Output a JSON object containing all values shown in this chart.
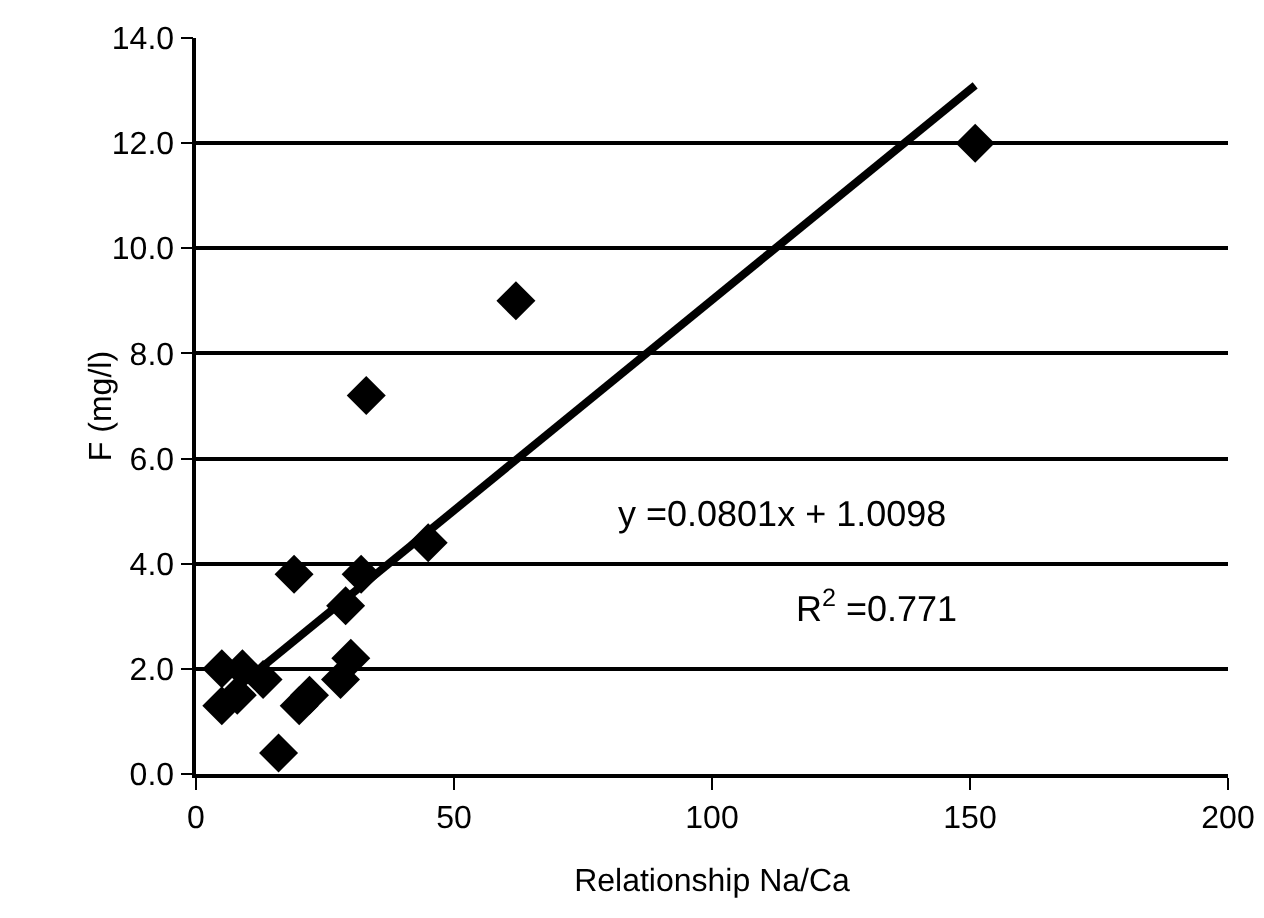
{
  "chart_data": {
    "type": "scatter",
    "xlabel": "Relationship Na/Ca",
    "ylabel": "F (mg/l)",
    "xlim": [
      0,
      200
    ],
    "xticks": [
      0,
      50,
      100,
      150,
      200
    ],
    "ylim": [
      0,
      14
    ],
    "yticks": [
      {
        "value": 0,
        "label": "0.0"
      },
      {
        "value": 2,
        "label": "2.0"
      },
      {
        "value": 4,
        "label": "4.0"
      },
      {
        "value": 6,
        "label": "6.0"
      },
      {
        "value": 8,
        "label": "8.0"
      },
      {
        "value": 10,
        "label": "10.0"
      },
      {
        "value": 12,
        "label": "12.0"
      },
      {
        "value": 14,
        "label": "14.0"
      }
    ],
    "grid": "y",
    "legend": false,
    "series": [
      {
        "color": "#000000",
        "marker": "diamond",
        "x": [
          151,
          62,
          33,
          45,
          19,
          32,
          29,
          30,
          28,
          20,
          22,
          16,
          5,
          5,
          9,
          8,
          13
        ],
        "values": [
          12.0,
          9.0,
          7.2,
          4.4,
          3.8,
          3.8,
          3.2,
          2.2,
          1.8,
          1.3,
          1.5,
          0.4,
          2.0,
          1.3,
          2.0,
          1.5,
          1.8
        ]
      },
      {
        "type": "line",
        "color": "#000000",
        "marker": "none",
        "line_style": "solid",
        "x": [
          5,
          151
        ],
        "values": [
          1.41,
          13.1
        ]
      }
    ],
    "annotations": [
      "y =0.0801x + 1.0098",
      "R$^{2}$ =0.771"
    ]
  }
}
